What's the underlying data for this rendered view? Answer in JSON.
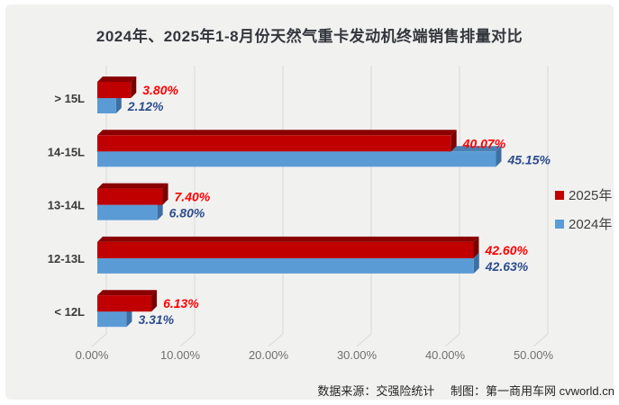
{
  "title": "2024年、2025年1-8月份天然气重卡发动机终端销售排量对比",
  "legend": {
    "items": [
      {
        "label": "2025年",
        "color": "#C00000"
      },
      {
        "label": "2024年",
        "color": "#5B9BD5"
      }
    ]
  },
  "footer": {
    "source_label": "数据来源：交强险统计",
    "credit_label": "制图：第一商用车网 cvworld.cn"
  },
  "chart_data": {
    "type": "bar",
    "orientation": "horizontal",
    "style": "3d",
    "title": "2024年、2025年1-8月份天然气重卡发动机终端销售排量对比",
    "categories": [
      "> 15L",
      "14-15L",
      "13-14L",
      "12-13L",
      "< 12L"
    ],
    "series": [
      {
        "name": "2025年",
        "values": [
          3.8,
          40.07,
          7.4,
          42.6,
          6.13
        ],
        "labels": [
          "3.80%",
          "40.07%",
          "7.40%",
          "42.60%",
          "6.13%"
        ],
        "bar_colors": {
          "front": "#C00000",
          "top": "#8A0000",
          "side": "#7A0000"
        },
        "label_color": "#FE0000"
      },
      {
        "name": "2024年",
        "values": [
          2.12,
          45.15,
          6.8,
          42.63,
          3.31
        ],
        "labels": [
          "2.12%",
          "45.15%",
          "6.80%",
          "42.63%",
          "3.31%"
        ],
        "bar_colors": {
          "front": "#5B9BD5",
          "top": "#4A80B4",
          "side": "#3E6FA3"
        },
        "label_color": "#2D4D8E"
      }
    ],
    "x_ticks": [
      "0.00%",
      "10.00%",
      "20.00%",
      "30.00%",
      "40.00%",
      "50.00%"
    ],
    "x_range": [
      0,
      50
    ],
    "grid": true,
    "grid_color": "#D9D9D9",
    "legend_position": "right"
  }
}
